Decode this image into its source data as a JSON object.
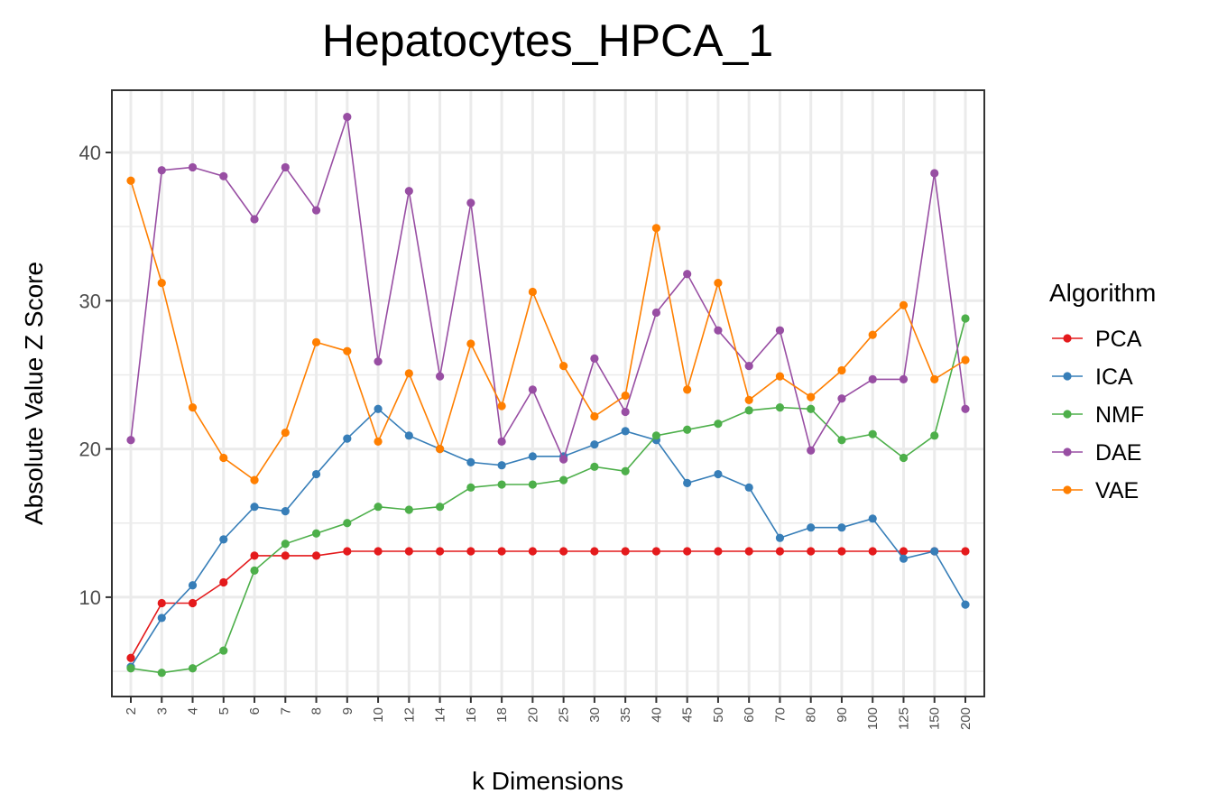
{
  "chart_data": {
    "type": "line",
    "title": "Hepatocytes_HPCA_1",
    "xlabel": "k Dimensions",
    "ylabel": "Absolute Value Z Score",
    "categories": [
      "2",
      "3",
      "4",
      "5",
      "6",
      "7",
      "8",
      "9",
      "10",
      "12",
      "14",
      "16",
      "18",
      "20",
      "25",
      "30",
      "35",
      "40",
      "45",
      "50",
      "60",
      "70",
      "80",
      "90",
      "100",
      "125",
      "150",
      "200"
    ],
    "yticks": [
      10,
      20,
      30,
      40
    ],
    "ylim": [
      3.3,
      44.2
    ],
    "grid": true,
    "legend": {
      "title": "Algorithm",
      "position": "right"
    },
    "series": [
      {
        "name": "PCA",
        "color": "#e41a1c",
        "values": [
          5.9,
          9.6,
          9.6,
          11.0,
          12.8,
          12.8,
          12.8,
          13.1,
          13.1,
          13.1,
          13.1,
          13.1,
          13.1,
          13.1,
          13.1,
          13.1,
          13.1,
          13.1,
          13.1,
          13.1,
          13.1,
          13.1,
          13.1,
          13.1,
          13.1,
          13.1,
          13.1,
          13.1
        ]
      },
      {
        "name": "ICA",
        "color": "#377eb8",
        "values": [
          5.3,
          8.6,
          10.8,
          13.9,
          16.1,
          15.8,
          18.3,
          20.7,
          22.7,
          20.9,
          20.0,
          19.1,
          18.9,
          19.5,
          19.5,
          20.3,
          21.2,
          20.6,
          17.7,
          18.3,
          17.4,
          14.0,
          14.7,
          14.7,
          15.3,
          12.6,
          13.1,
          9.5
        ]
      },
      {
        "name": "NMF",
        "color": "#4daf4a",
        "values": [
          5.2,
          4.9,
          5.2,
          6.4,
          11.8,
          13.6,
          14.3,
          15.0,
          16.1,
          15.9,
          16.1,
          17.4,
          17.6,
          17.6,
          17.9,
          18.8,
          18.5,
          20.9,
          21.3,
          21.7,
          22.6,
          22.8,
          22.7,
          20.6,
          21.0,
          19.4,
          20.9,
          28.8
        ]
      },
      {
        "name": "DAE",
        "color": "#984ea3",
        "values": [
          20.6,
          38.8,
          39.0,
          38.4,
          35.5,
          39.0,
          36.1,
          42.4,
          25.9,
          37.4,
          24.9,
          36.6,
          20.5,
          24.0,
          19.3,
          26.1,
          22.5,
          29.2,
          31.8,
          28.0,
          25.6,
          28.0,
          19.9,
          23.4,
          24.7,
          24.7,
          38.6,
          22.7
        ]
      },
      {
        "name": "VAE",
        "color": "#ff7f00",
        "values": [
          38.1,
          31.2,
          22.8,
          19.4,
          17.9,
          21.1,
          27.2,
          26.6,
          20.5,
          25.1,
          20.0,
          27.1,
          22.9,
          30.6,
          25.6,
          22.2,
          23.6,
          34.9,
          24.0,
          31.2,
          23.3,
          24.9,
          23.5,
          25.3,
          27.7,
          29.7,
          24.7,
          26.0
        ]
      }
    ]
  }
}
